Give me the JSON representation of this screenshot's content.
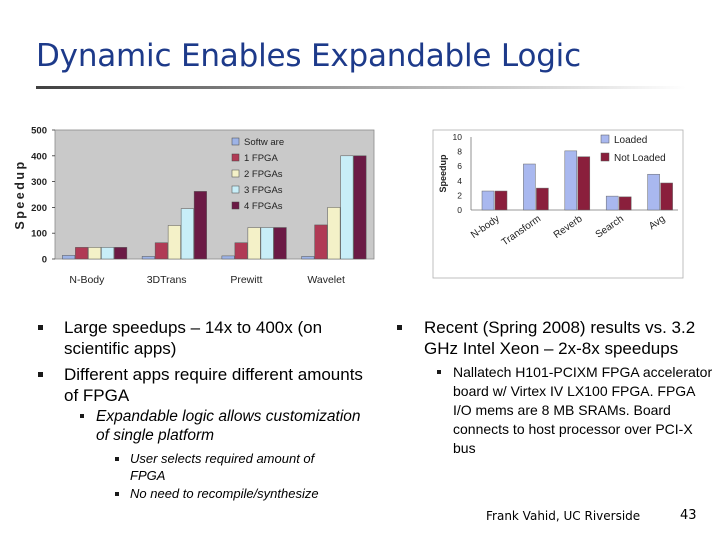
{
  "slide": {
    "title": "Dynamic Enables Expandable Logic",
    "footer_author": "Frank Vahid, UC Riverside",
    "page_number": "43"
  },
  "left_bullets": {
    "b1": "Large speedups – 14x to 400x (on scientific apps)",
    "b2": "Different apps require different amounts of FPGA",
    "b2_sub": "Expandable logic allows customization of single platform",
    "b2_sub_items": [
      "User selects required amount of FPGA",
      "No need to recompile/synthesize"
    ]
  },
  "right_bullets": {
    "b1": "Recent (Spring 2008) results vs. 3.2 GHz Intel Xeon – 2x-8x speedups",
    "b1_sub": "Nallatech H101-PCIXM FPGA accelerator board w/ Virtex IV LX100 FPGA. FPGA I/O mems are 8 MB SRAMs. Board connects to host processor over PCI-X bus"
  },
  "colors": {
    "title": "#1d3a8a",
    "software": "#9db3e6",
    "fpga1": "#b03a55",
    "fpga2": "#f4f1c8",
    "fpga3": "#c8eef8",
    "fpga4": "#6b1a45",
    "loaded": "#a9b8ef",
    "not_loaded": "#8a1f3c"
  },
  "chart_data": [
    {
      "type": "bar",
      "title": "",
      "ylabel": "Speedup",
      "xlabel": "",
      "ylim": [
        0,
        500
      ],
      "yticks": [
        0,
        100,
        200,
        300,
        400,
        500
      ],
      "legend_position": "top-right",
      "categories": [
        "N-Body",
        "3DTrans",
        "Prewitt",
        "Wavelet"
      ],
      "series": [
        {
          "name": "Softw are",
          "values": [
            14,
            10,
            12,
            10
          ]
        },
        {
          "name": "1 FPGA",
          "values": [
            45,
            63,
            63,
            132
          ]
        },
        {
          "name": "2 FPGAs",
          "values": [
            45,
            130,
            122,
            200
          ]
        },
        {
          "name": "3 FPGAs",
          "values": [
            45,
            195,
            122,
            400
          ]
        },
        {
          "name": "4 FPGAs",
          "values": [
            45,
            262,
            122,
            400
          ]
        }
      ]
    },
    {
      "type": "bar",
      "title": "",
      "ylabel": "Speedup",
      "xlabel": "",
      "ylim": [
        0,
        10
      ],
      "yticks": [
        0,
        2,
        4,
        6,
        8,
        10
      ],
      "legend_position": "top-right",
      "categories": [
        "N-body",
        "Transform",
        "Reverb",
        "Search",
        "Avg"
      ],
      "series": [
        {
          "name": "Loaded",
          "values": [
            2.6,
            6.3,
            8.1,
            1.9,
            4.9
          ]
        },
        {
          "name": "Not Loaded",
          "values": [
            2.6,
            3.0,
            7.3,
            1.8,
            3.7
          ]
        }
      ]
    }
  ]
}
